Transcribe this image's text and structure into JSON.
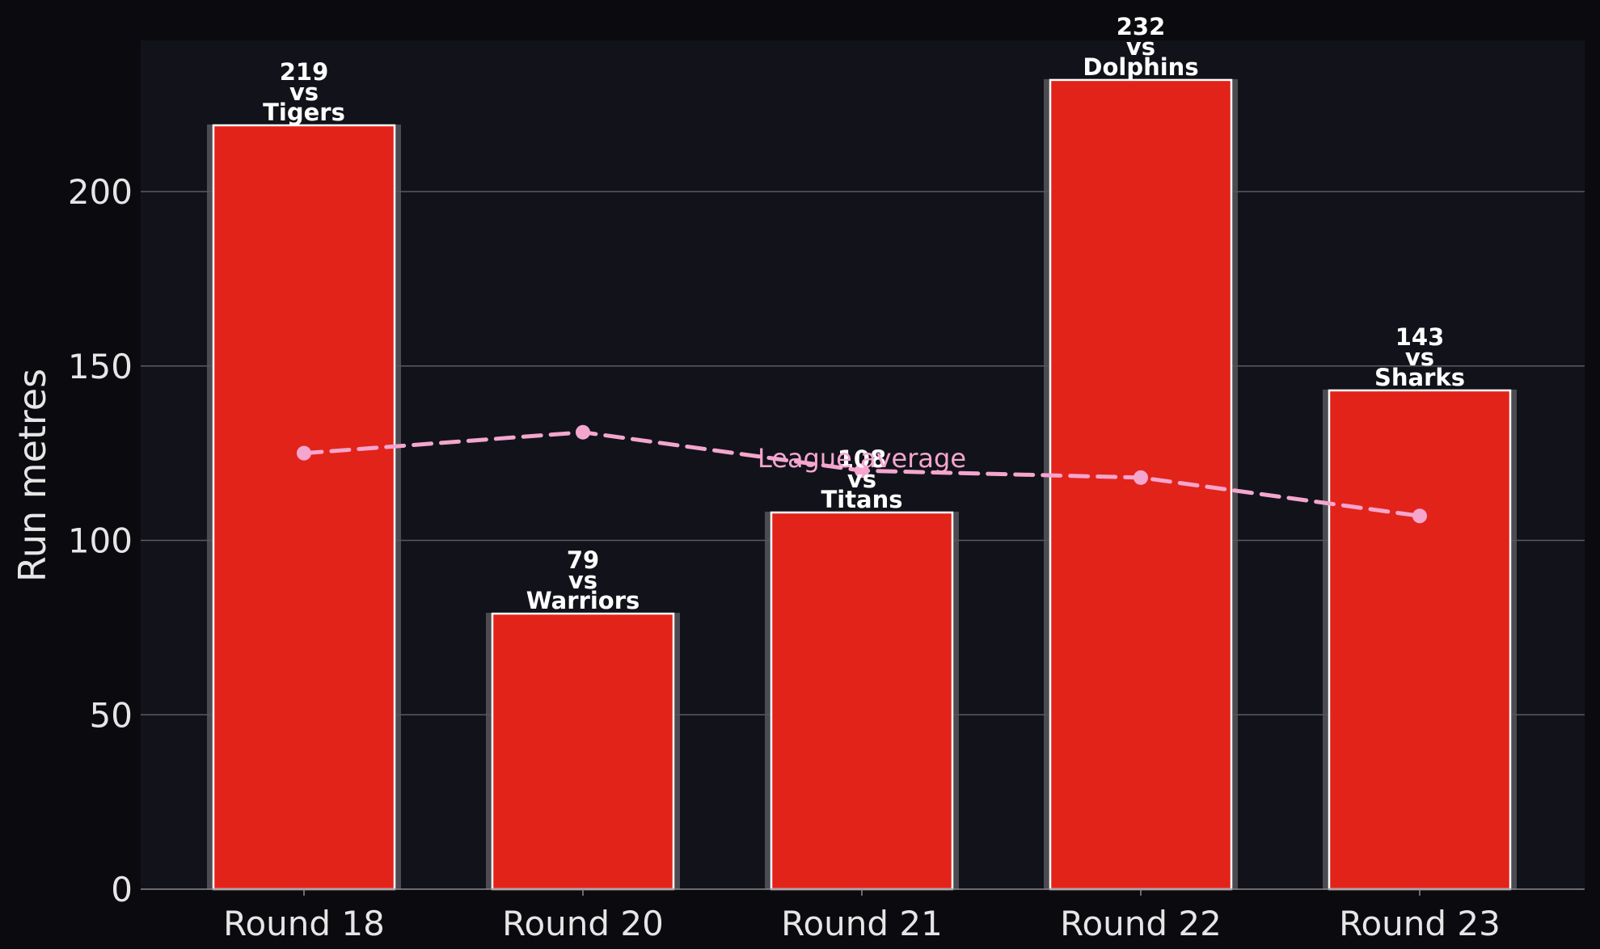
{
  "chart_data": {
    "type": "bar",
    "categories": [
      "Round 18",
      "Round 20",
      "Round 21",
      "Round 22",
      "Round 23"
    ],
    "opponents": [
      "Tigers",
      "Warriors",
      "Titans",
      "Dolphins",
      "Sharks"
    ],
    "values": [
      219,
      79,
      108,
      232,
      143
    ],
    "bar_labels": [
      [
        "219",
        "vs",
        "Tigers"
      ],
      [
        "79",
        "vs",
        "Warriors"
      ],
      [
        "108",
        "vs",
        "Titans"
      ],
      [
        "232",
        "vs",
        "Dolphins"
      ],
      [
        "143",
        "vs",
        "Sharks"
      ]
    ],
    "overlay_line": {
      "type": "line",
      "style": "dashed",
      "label": "League average",
      "values": [
        125,
        131,
        120,
        118,
        107
      ]
    },
    "title": "",
    "xlabel": "",
    "ylabel": "Run metres",
    "ylim": [
      0,
      245
    ],
    "yticks": [
      0,
      50,
      100,
      150,
      200
    ],
    "grid": "horizontal",
    "colors": {
      "background": "#0b0b0f",
      "plot_background": "#12131a",
      "bar": "#e2231a",
      "bar_edge": "#ffffff",
      "bar_shadow": "#56565c",
      "grid": "#5a5a60",
      "line": "#f4a6cf",
      "text": "#e6e6e6"
    }
  }
}
